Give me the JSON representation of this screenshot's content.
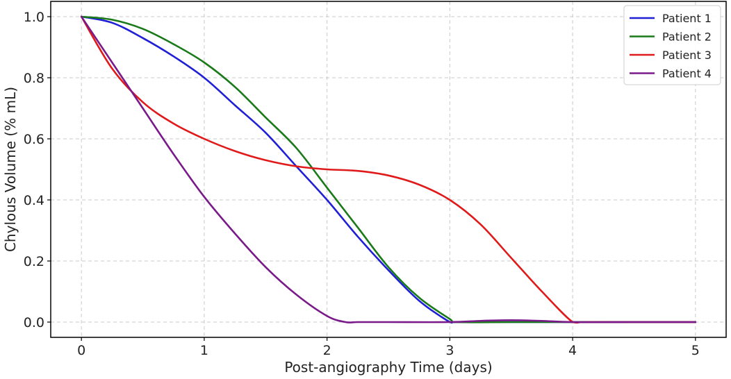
{
  "chart_data": {
    "type": "line",
    "title": "",
    "xlabel": "Post-angiography Time (days)",
    "ylabel": "Chylous Volume (% mL)",
    "xlim": [
      -0.25,
      5.25
    ],
    "ylim": [
      -0.05,
      1.05
    ],
    "xticks": [
      0,
      1,
      2,
      3,
      4,
      5
    ],
    "xtick_labels": [
      "0",
      "1",
      "2",
      "3",
      "4",
      "5"
    ],
    "yticks": [
      0.0,
      0.2,
      0.4,
      0.6,
      0.8,
      1.0
    ],
    "ytick_labels": [
      "0.0",
      "0.2",
      "0.4",
      "0.6",
      "0.8",
      "1.0"
    ],
    "grid": true,
    "legend_position": "top-right",
    "series": [
      {
        "name": "Patient 1",
        "color": "#1f1fd6",
        "x": [
          0,
          0.25,
          0.5,
          0.75,
          1.0,
          1.25,
          1.5,
          1.75,
          2.0,
          2.25,
          2.5,
          2.75,
          3.0,
          3.05,
          3.5,
          4.0,
          4.5,
          5.0
        ],
        "y": [
          1.0,
          0.98,
          0.93,
          0.87,
          0.8,
          0.71,
          0.62,
          0.51,
          0.4,
          0.28,
          0.17,
          0.07,
          0.0,
          0.0,
          0.0,
          0.0,
          0.0,
          0.0
        ]
      },
      {
        "name": "Patient 2",
        "color": "#1a7a1a",
        "x": [
          0,
          0.25,
          0.5,
          0.75,
          1.0,
          1.25,
          1.5,
          1.75,
          2.0,
          2.25,
          2.5,
          2.75,
          3.0,
          3.05,
          3.5,
          4.0,
          4.5,
          5.0
        ],
        "y": [
          1.0,
          0.99,
          0.96,
          0.91,
          0.85,
          0.77,
          0.67,
          0.57,
          0.44,
          0.31,
          0.18,
          0.08,
          0.01,
          0.0,
          0.0,
          0.0,
          0.0,
          0.0
        ]
      },
      {
        "name": "Patient 3",
        "color": "#e01a1a",
        "x": [
          0,
          0.25,
          0.5,
          0.75,
          1.0,
          1.25,
          1.5,
          1.75,
          2.0,
          2.25,
          2.5,
          2.75,
          3.0,
          3.25,
          3.5,
          3.75,
          4.0,
          4.1,
          4.5,
          5.0
        ],
        "y": [
          1.0,
          0.83,
          0.72,
          0.65,
          0.6,
          0.56,
          0.53,
          0.51,
          0.5,
          0.495,
          0.48,
          0.45,
          0.4,
          0.32,
          0.21,
          0.1,
          0.0,
          0.0,
          0.0,
          0.0
        ]
      },
      {
        "name": "Patient 4",
        "color": "#7a1a8a",
        "x": [
          0,
          0.25,
          0.5,
          0.75,
          1.0,
          1.25,
          1.5,
          1.75,
          2.0,
          2.15,
          2.25,
          2.5,
          3.0,
          3.25,
          3.5,
          3.75,
          4.0,
          4.5,
          5.0
        ],
        "y": [
          1.0,
          0.85,
          0.7,
          0.55,
          0.41,
          0.29,
          0.18,
          0.09,
          0.02,
          0.0,
          0.0,
          0.0,
          0.0,
          0.004,
          0.006,
          0.004,
          0.0,
          0.0,
          0.0
        ]
      }
    ]
  }
}
